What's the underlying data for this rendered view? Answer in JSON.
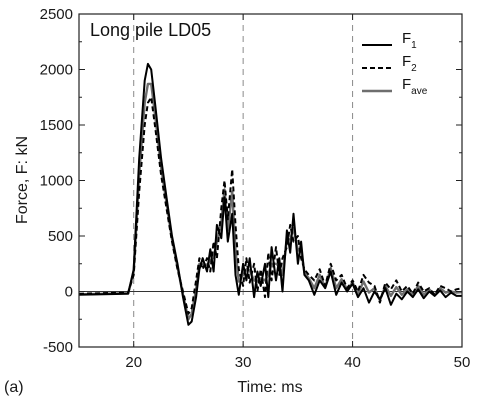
{
  "panel_label": "(a)",
  "chart_data": {
    "type": "line",
    "title": "",
    "annotation": "Long pile LD05",
    "xlabel": "Time: ms",
    "ylabel": "Force, F: kN",
    "xlim": [
      15,
      50
    ],
    "ylim": [
      -500,
      2500
    ],
    "xticks": [
      20,
      30,
      40,
      50
    ],
    "yticks": [
      -500,
      0,
      500,
      1000,
      1500,
      2000,
      2500
    ],
    "grid": "vertical dashed at x ticks; zero line",
    "legend_position": "top-right",
    "legend": [
      {
        "base": "F",
        "sub": "1"
      },
      {
        "base": "F",
        "sub": "2"
      },
      {
        "base": "F",
        "sub": "ave"
      }
    ],
    "series": [
      {
        "name": "F1",
        "color": "#000000",
        "dash": "solid",
        "x": [
          15,
          19.5,
          20,
          20.5,
          21,
          21.3,
          21.6,
          22,
          22.5,
          23,
          23.5,
          24,
          24.5,
          25,
          25.3,
          25.7,
          26,
          26.3,
          26.7,
          27,
          27.3,
          27.6,
          28,
          28.3,
          28.6,
          29,
          29.3,
          29.6,
          30,
          30.3,
          30.6,
          31,
          31.3,
          31.6,
          32,
          32.3,
          32.6,
          33,
          33.3,
          33.6,
          34,
          34.3,
          34.6,
          35,
          35.3,
          35.6,
          36,
          36.5,
          37,
          37.5,
          38,
          38.5,
          39,
          39.5,
          40,
          40.5,
          41,
          41.5,
          42,
          42.5,
          43,
          43.5,
          44,
          44.5,
          45,
          45.5,
          46,
          46.5,
          47,
          47.5,
          48,
          48.5,
          49,
          49.5,
          50
        ],
        "y": [
          -30,
          -20,
          200,
          1200,
          1900,
          2050,
          2000,
          1650,
          1200,
          850,
          500,
          250,
          -50,
          -300,
          -270,
          -50,
          200,
          300,
          180,
          380,
          180,
          600,
          480,
          850,
          450,
          700,
          150,
          -30,
          250,
          100,
          300,
          -50,
          180,
          50,
          250,
          -50,
          400,
          100,
          300,
          0,
          550,
          350,
          700,
          250,
          450,
          150,
          100,
          -30,
          100,
          30,
          180,
          -30,
          80,
          0,
          70,
          -50,
          30,
          -100,
          0,
          -70,
          30,
          -120,
          -20,
          -70,
          0,
          -50,
          20,
          -60,
          0,
          -40,
          10,
          -50,
          -10,
          -40,
          -40
        ]
      },
      {
        "name": "F2",
        "color": "#000000",
        "dash": "dashed",
        "x": [
          15,
          19.5,
          20,
          20.5,
          21,
          21.3,
          21.6,
          22,
          22.5,
          23,
          23.5,
          24,
          24.5,
          25,
          25.3,
          25.7,
          26,
          26.3,
          26.7,
          27,
          27.3,
          27.6,
          28,
          28.3,
          28.6,
          29,
          29.3,
          29.6,
          30,
          30.3,
          30.6,
          31,
          31.3,
          31.6,
          32,
          32.3,
          32.6,
          33,
          33.3,
          33.6,
          34,
          34.3,
          34.6,
          35,
          35.3,
          35.6,
          36,
          36.5,
          37,
          37.5,
          38,
          38.5,
          39,
          39.5,
          40,
          40.5,
          41,
          41.5,
          42,
          42.5,
          43,
          43.5,
          44,
          44.5,
          45,
          45.5,
          46,
          46.5,
          47,
          47.5,
          48,
          48.5,
          49,
          49.5,
          50
        ],
        "y": [
          -20,
          -10,
          150,
          900,
          1500,
          1700,
          1750,
          1450,
          1050,
          750,
          450,
          200,
          0,
          -200,
          -150,
          100,
          300,
          200,
          300,
          180,
          450,
          300,
          750,
          1000,
          650,
          1100,
          600,
          200,
          50,
          300,
          80,
          250,
          0,
          200,
          -50,
          350,
          100,
          400,
          150,
          300,
          400,
          600,
          450,
          500,
          300,
          200,
          150,
          100,
          200,
          50,
          250,
          100,
          150,
          30,
          100,
          0,
          150,
          80,
          50,
          -100,
          80,
          20,
          100,
          0,
          50,
          -20,
          80,
          0,
          30,
          -30,
          50,
          30,
          0,
          20,
          30
        ]
      },
      {
        "name": "Fave",
        "color": "#6e6e6e",
        "dash": "solid",
        "x": [
          15,
          19.5,
          20,
          20.5,
          21,
          21.3,
          21.6,
          22,
          22.5,
          23,
          23.5,
          24,
          24.5,
          25,
          25.3,
          25.7,
          26,
          26.3,
          26.7,
          27,
          27.3,
          27.6,
          28,
          28.3,
          28.6,
          29,
          29.3,
          29.6,
          30,
          30.3,
          30.6,
          31,
          31.3,
          31.6,
          32,
          32.3,
          32.6,
          33,
          33.3,
          33.6,
          34,
          34.3,
          34.6,
          35,
          35.3,
          35.6,
          36,
          36.5,
          37,
          37.5,
          38,
          38.5,
          39,
          39.5,
          40,
          40.5,
          41,
          41.5,
          42,
          42.5,
          43,
          43.5,
          44,
          44.5,
          45,
          45.5,
          46,
          46.5,
          47,
          47.5,
          48,
          48.5,
          49,
          49.5,
          50
        ],
        "y": [
          -25,
          -15,
          180,
          1050,
          1700,
          1870,
          1870,
          1550,
          1120,
          800,
          470,
          220,
          -30,
          -250,
          -200,
          20,
          250,
          250,
          240,
          280,
          310,
          450,
          620,
          920,
          550,
          900,
          370,
          90,
          150,
          200,
          190,
          100,
          90,
          120,
          100,
          150,
          250,
          250,
          230,
          150,
          470,
          470,
          570,
          370,
          370,
          170,
          120,
          30,
          150,
          40,
          210,
          30,
          110,
          20,
          80,
          -20,
          90,
          -10,
          30,
          -80,
          50,
          -40,
          40,
          -30,
          20,
          -30,
          50,
          -30,
          20,
          -30,
          30,
          -10,
          0,
          -10,
          -5
        ]
      }
    ]
  }
}
